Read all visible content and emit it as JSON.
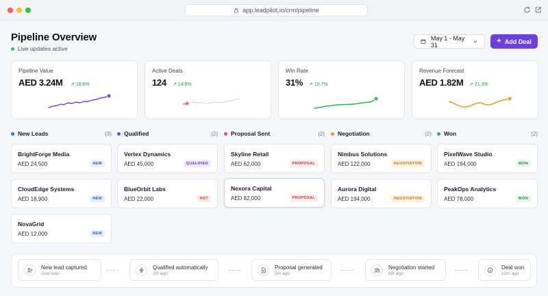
{
  "browser": {
    "url": "app.leadpilot.io/crm/pipeline"
  },
  "header": {
    "title": "Pipeline Overview",
    "live_status": "Live updates active",
    "date_range": "May 1 - May 31",
    "add_deal": "Add Deal"
  },
  "kpis": [
    {
      "label": "Pipeline Value",
      "value": "AED 3.24M",
      "delta": "18.6%",
      "color": "#6d3fe0"
    },
    {
      "label": "Active Deals",
      "value": "124",
      "delta": "14.5%",
      "color": "#e84a8a"
    },
    {
      "label": "Win Rate",
      "value": "31%",
      "delta": "10.7%",
      "color": "#2fb35a"
    },
    {
      "label": "Revenue Forecast",
      "value": "AED 1.82M",
      "delta": "21.3%",
      "color": "#f0962a"
    }
  ],
  "columns": [
    {
      "title": "New Leads",
      "count": "(3)",
      "color": "#3b6fe0",
      "deals": [
        {
          "name": "BrightForge Media",
          "amount": "AED 24,500",
          "badge": "NEW"
        },
        {
          "name": "CloudEdge Systems",
          "amount": "AED 18,900",
          "badge": "NEW"
        },
        {
          "name": "NovaGrid",
          "amount": "AED 12,000",
          "badge": "NEW"
        }
      ]
    },
    {
      "title": "Qualified",
      "count": "(2)",
      "color": "#7b45e6",
      "deals": [
        {
          "name": "Vertex Dynamics",
          "amount": "AED 45,000",
          "badge": "QUALIFIED"
        },
        {
          "name": "BlueOrbit Labs",
          "amount": "AED 22,000",
          "badge": "HOT"
        }
      ]
    },
    {
      "title": "Proposal Sent",
      "count": "(2)",
      "color": "#e84a8a",
      "deals": [
        {
          "name": "Skyline Retail",
          "amount": "AED 62,000",
          "badge": "PROPOSAL"
        },
        {
          "name": "Nexora Capital",
          "amount": "AED 82,000",
          "badge": "PROPOSAL"
        }
      ]
    },
    {
      "title": "Negotiation",
      "count": "(2)",
      "color": "#f0962a",
      "deals": [
        {
          "name": "Nimbus Solutions",
          "amount": "AED 122,000",
          "badge": "NEGOTIATION"
        },
        {
          "name": "Aurora Digital",
          "amount": "AED 194,000",
          "badge": "NEGOTIATION"
        }
      ]
    },
    {
      "title": "Won",
      "count": "(2)",
      "color": "#2fb35a",
      "deals": [
        {
          "name": "PixelWave Studio",
          "amount": "AED 194,000",
          "badge": "WON"
        },
        {
          "name": "PeakOps Analytics",
          "amount": "AED 78,000",
          "badge": "WON"
        }
      ]
    }
  ],
  "activity": [
    {
      "title": "New lead captured",
      "time": "Just now",
      "icon": "user-plus-icon"
    },
    {
      "title": "Qualified automatically",
      "time": "2m ago",
      "icon": "bolt-icon"
    },
    {
      "title": "Proposal generated",
      "time": "5m ago",
      "icon": "document-icon"
    },
    {
      "title": "Negotiation started",
      "time": "8m ago",
      "icon": "users-icon"
    },
    {
      "title": "Deal won",
      "time": "12m ago",
      "icon": "check-circle-icon"
    }
  ]
}
